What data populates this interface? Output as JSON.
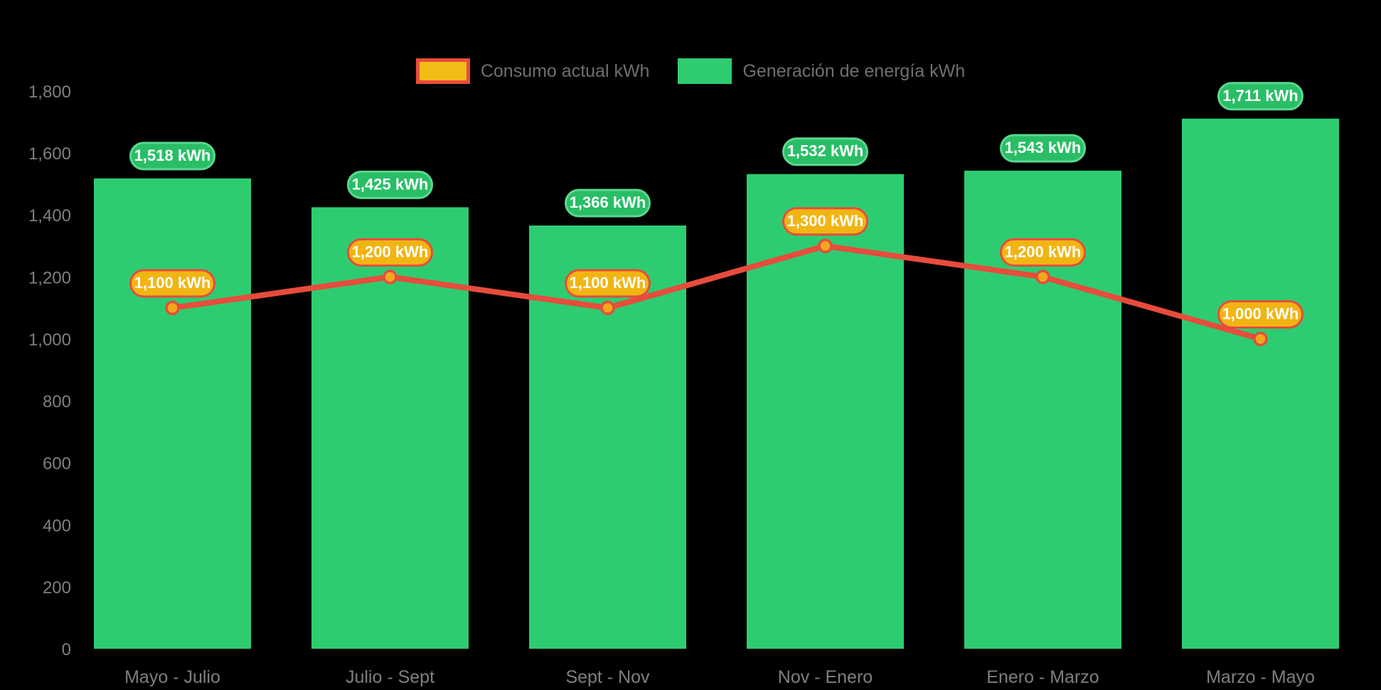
{
  "legend": {
    "items": [
      {
        "label": "Consumo actual kWh",
        "swatch_fill": "#F1BC16",
        "swatch_border": "#E74C3C"
      },
      {
        "label": "Generación de energía kWh",
        "swatch_fill": "#2ECC71",
        "swatch_border": "#2ECC71"
      }
    ]
  },
  "chart_data": {
    "type": "bar+line",
    "background": "#000000",
    "axis_text_color": "#7F7F7F",
    "grid": false,
    "legend_position": "top",
    "categories": [
      "Mayo - Julio",
      "Julio - Sept",
      "Sept - Nov",
      "Nov - Enero",
      "Enero - Marzo",
      "Marzo - Mayo"
    ],
    "ylim": [
      0,
      1800
    ],
    "y_ticks": [
      {
        "value": 0,
        "label": "0"
      },
      {
        "value": 200,
        "label": "200"
      },
      {
        "value": 400,
        "label": "400"
      },
      {
        "value": 600,
        "label": "600"
      },
      {
        "value": 800,
        "label": "800"
      },
      {
        "value": 1000,
        "label": "1,000"
      },
      {
        "value": 1200,
        "label": "1,200"
      },
      {
        "value": 1400,
        "label": "1,400"
      },
      {
        "value": 1600,
        "label": "1,600"
      },
      {
        "value": 1800,
        "label": "1,800"
      }
    ],
    "series": [
      {
        "name": "Generación de energía kWh",
        "type": "bar",
        "color": "#2ECC71",
        "values": [
          1518,
          1425,
          1366,
          1532,
          1543,
          1711
        ],
        "point_labels": [
          "1,518 kWh",
          "1,425 kWh",
          "1,366 kWh",
          "1,532 kWh",
          "1,543 kWh",
          "1,711 kWh"
        ],
        "label_pill": {
          "fill": "#29BE66",
          "border": "#5BD890",
          "text_color": "#FFFFFF"
        }
      },
      {
        "name": "Consumo actual kWh",
        "type": "line",
        "color": "#E74C3C",
        "marker_fill": "#F2A71E",
        "marker_border": "#E74C3C",
        "values": [
          1100,
          1200,
          1100,
          1300,
          1200,
          1000
        ],
        "point_labels": [
          "1,100 kWh",
          "1,200 kWh",
          "1,100 kWh",
          "1,300 kWh",
          "1,200 kWh",
          "1,000 kWh"
        ],
        "label_pill": {
          "fill": "#F1B513",
          "border": "#E74C3C",
          "text_color": "#FFFFFF"
        }
      }
    ]
  }
}
